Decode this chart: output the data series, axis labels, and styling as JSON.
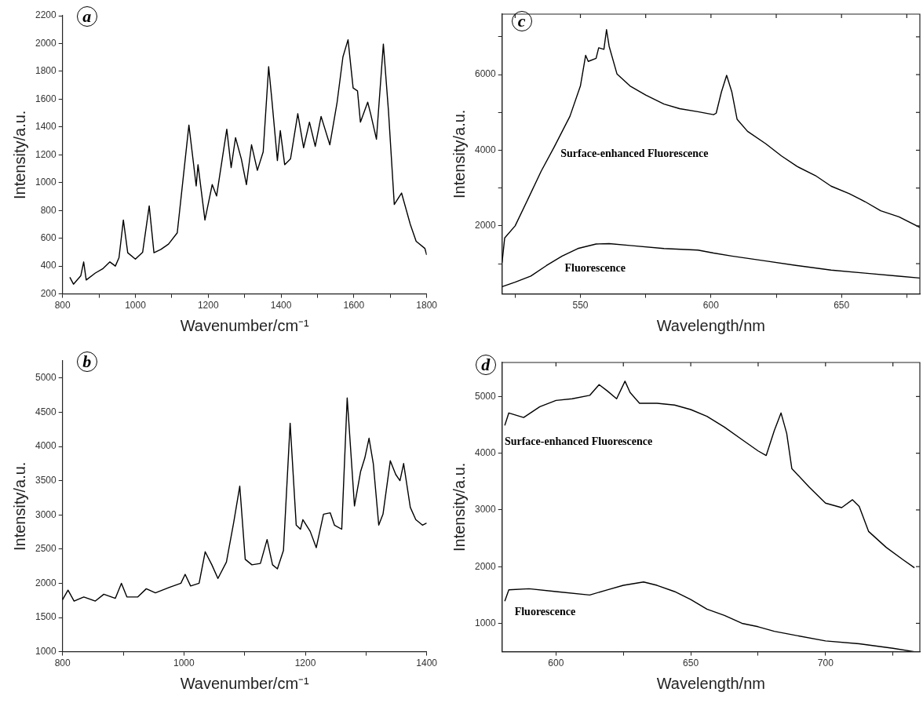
{
  "chart_data": [
    {
      "type": "line",
      "xlabel": "Wavenumber/cm⁻¹",
      "ylabel": "Intensity/a.u.",
      "annotations": [
        "a"
      ],
      "xlim": [
        800,
        1800
      ],
      "ylim": [
        200,
        2200
      ],
      "xticks": [
        800,
        {
          "value": 900,
          "label": null
        },
        1000,
        {
          "value": 1100,
          "label": null
        },
        1200,
        {
          "value": 1300,
          "label": null
        },
        1400,
        {
          "value": 1500,
          "label": null
        },
        1600,
        {
          "value": 1700,
          "label": null
        },
        1800
      ],
      "yticks": [
        200,
        400,
        600,
        800,
        1000,
        1200,
        1400,
        1600,
        1800,
        2000,
        2200
      ],
      "grid": false,
      "legend": false,
      "series": [
        {
          "color": "#000000",
          "x": [
            820,
            830,
            850,
            858,
            865,
            890,
            910,
            930,
            945,
            955,
            967,
            979,
            1000,
            1020,
            1038,
            1051,
            1070,
            1091,
            1115,
            1147,
            1167,
            1172,
            1191,
            1211,
            1223,
            1251,
            1263,
            1275,
            1291,
            1305,
            1319,
            1335,
            1351,
            1366,
            1374,
            1390,
            1398,
            1410,
            1426,
            1446,
            1462,
            1478,
            1494,
            1510,
            1534,
            1554,
            1570,
            1584,
            1598,
            1610,
            1618,
            1638,
            1646,
            1662,
            1681,
            1695,
            1711,
            1731,
            1755,
            1771,
            1795,
            1800
          ],
          "values": [
            320,
            270,
            330,
            430,
            300,
            350,
            380,
            430,
            400,
            460,
            731,
            496,
            450,
            500,
            833,
            496,
            520,
            558,
            639,
            1414,
            976,
            1129,
            731,
            986,
            904,
            1384,
            1108,
            1323,
            1170,
            986,
            1272,
            1088,
            1221,
            1833,
            1618,
            1159,
            1374,
            1129,
            1170,
            1496,
            1251,
            1435,
            1261,
            1476,
            1272,
            1578,
            1904,
            2027,
            1680,
            1659,
            1435,
            1578,
            1496,
            1312,
            1996,
            1517,
            843,
            925,
            700,
            578,
            527,
            480
          ]
        }
      ]
    },
    {
      "type": "line",
      "xlabel": "Wavenumber/cm⁻¹",
      "ylabel": "Intensity/a.u.",
      "annotations": [
        "b"
      ],
      "xlim": [
        800,
        1400
      ],
      "ylim": [
        1000,
        5250
      ],
      "xticks": [
        800,
        {
          "value": 900,
          "label": null
        },
        1000,
        {
          "value": 1100,
          "label": null
        },
        1200,
        {
          "value": 1300,
          "label": null
        },
        1400
      ],
      "yticks": [
        1000,
        1500,
        2000,
        2500,
        3000,
        3500,
        4000,
        4500,
        5000
      ],
      "grid": false,
      "legend": false,
      "series": [
        {
          "color": "#000000",
          "x": [
            800,
            809,
            819,
            835,
            854,
            868,
            887,
            897,
            906,
            924,
            938,
            953,
            976,
            995,
            1002,
            1011,
            1025,
            1035,
            1046,
            1056,
            1070,
            1082,
            1092,
            1101,
            1112,
            1126,
            1137,
            1146,
            1154,
            1164,
            1175,
            1185,
            1192,
            1196,
            1208,
            1218,
            1230,
            1241,
            1248,
            1260,
            1269,
            1281,
            1291,
            1298,
            1305,
            1312,
            1321,
            1328,
            1340,
            1349,
            1356,
            1362,
            1373,
            1382,
            1393,
            1400
          ],
          "values": [
            1760,
            1900,
            1740,
            1800,
            1740,
            1840,
            1780,
            2000,
            1800,
            1800,
            1920,
            1860,
            1940,
            2000,
            2130,
            1960,
            2000,
            2460,
            2270,
            2070,
            2310,
            2890,
            3420,
            2350,
            2270,
            2290,
            2640,
            2270,
            2210,
            2480,
            4340,
            2850,
            2790,
            2930,
            2760,
            2520,
            3010,
            3030,
            2850,
            2790,
            4710,
            3130,
            3630,
            3830,
            4120,
            3750,
            2850,
            3010,
            3790,
            3590,
            3500,
            3750,
            3110,
            2930,
            2850,
            2880
          ]
        }
      ]
    },
    {
      "type": "line",
      "xlabel": "Wavelength/nm",
      "ylabel": "Intensity/a.u.",
      "annotations": [
        "c"
      ],
      "xlim": [
        520,
        680
      ],
      "ylim": [
        200,
        7600
      ],
      "xticks": [
        {
          "value": 525,
          "label": null
        },
        550,
        {
          "value": 575,
          "label": null
        },
        600,
        {
          "value": 625,
          "label": null
        },
        650,
        {
          "value": 675,
          "label": null
        }
      ],
      "yticks": [
        {
          "value": 1000,
          "label": null
        },
        2000,
        {
          "value": 3000,
          "label": null
        },
        4000,
        {
          "value": 5000,
          "label": null
        },
        6000,
        {
          "value": 7000,
          "label": null
        }
      ],
      "grid": false,
      "legend": false,
      "series": [
        {
          "name": "Surface-enhanced Fluorescence",
          "color": "#000000",
          "x": [
            520,
            521,
            525,
            530,
            535,
            540,
            546,
            550,
            552,
            553,
            556,
            557,
            559,
            560,
            561,
            564,
            569,
            575,
            582,
            588,
            595,
            601,
            602,
            604,
            606,
            608,
            610,
            614,
            621,
            627,
            633,
            640,
            646,
            653,
            659,
            665,
            672,
            680
          ],
          "values": [
            1030,
            1680,
            2000,
            2720,
            3450,
            4090,
            4900,
            5700,
            6510,
            6350,
            6430,
            6710,
            6670,
            7190,
            6750,
            6020,
            5700,
            5460,
            5220,
            5100,
            5020,
            4940,
            4980,
            5540,
            5980,
            5540,
            4820,
            4500,
            4170,
            3850,
            3570,
            3330,
            3050,
            2850,
            2640,
            2400,
            2240,
            1960
          ]
        },
        {
          "name": "Fluorescence",
          "color": "#000000",
          "x": [
            520,
            525,
            531,
            537,
            543,
            549,
            556,
            561,
            569,
            582,
            595,
            601,
            608,
            621,
            633,
            646,
            659,
            672,
            680
          ],
          "values": [
            390,
            510,
            670,
            950,
            1200,
            1400,
            1520,
            1530,
            1480,
            1400,
            1360,
            1280,
            1200,
            1070,
            950,
            830,
            750,
            670,
            620
          ]
        }
      ]
    },
    {
      "type": "line",
      "xlabel": "Wavelength/nm",
      "ylabel": "Intensity/a.u.",
      "annotations": [
        "d"
      ],
      "xlim": [
        580,
        735
      ],
      "ylim": [
        500,
        5600
      ],
      "xticks": [
        600,
        {
          "value": 625,
          "label": null
        },
        650,
        {
          "value": 675,
          "label": null
        },
        700,
        {
          "value": 725,
          "label": null
        }
      ],
      "yticks": [
        1000,
        2000,
        3000,
        4000,
        5000
      ],
      "grid": false,
      "legend": false,
      "series": [
        {
          "name": "Surface-enhanced Fluorescence",
          "color": "#000000",
          "x": [
            581,
            582.5,
            588,
            594,
            600,
            606,
            612.5,
            616,
            619,
            622.5,
            625.6,
            627.5,
            631,
            637.5,
            644,
            650,
            656,
            662.5,
            669,
            675,
            678,
            681,
            683.5,
            685.6,
            687.5,
            694,
            700,
            706,
            710,
            712.5,
            716,
            722.5,
            728.8,
            733
          ],
          "values": [
            4490,
            4710,
            4630,
            4820,
            4930,
            4960,
            5020,
            5210,
            5100,
            4960,
            5270,
            5070,
            4880,
            4880,
            4850,
            4770,
            4650,
            4460,
            4240,
            4040,
            3960,
            4400,
            4710,
            4350,
            3730,
            3400,
            3120,
            3040,
            3180,
            3060,
            2620,
            2340,
            2120,
            1980
          ]
        },
        {
          "name": "Fluorescence",
          "color": "#000000",
          "x": [
            581,
            582.5,
            590,
            600,
            612.5,
            619,
            625,
            632.5,
            637.5,
            644,
            650,
            656,
            662.5,
            669,
            675,
            681,
            687.5,
            700,
            712.5,
            725,
            733
          ],
          "values": [
            1390,
            1590,
            1610,
            1560,
            1500,
            1590,
            1670,
            1730,
            1670,
            1560,
            1420,
            1250,
            1140,
            1000,
            940,
            860,
            800,
            690,
            640,
            560,
            500
          ]
        }
      ]
    }
  ]
}
